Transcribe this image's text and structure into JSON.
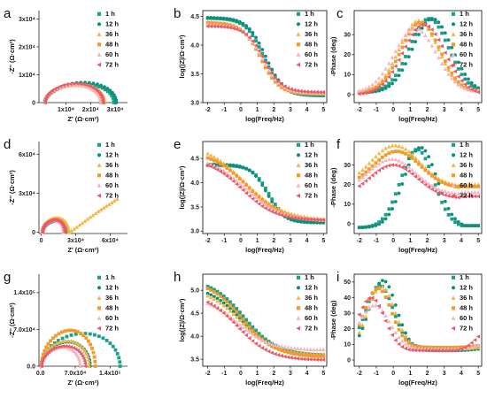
{
  "colors": {
    "1 h": "#1aa18c",
    "12 h": "#0d8f7a",
    "36 h": "#f4b642",
    "48 h": "#f39b2a",
    "60 h": "#f6b6c2",
    "72 h": "#e85a6a"
  },
  "series_names": [
    "1 h",
    "12 h",
    "36 h",
    "48 h",
    "60 h",
    "72 h"
  ],
  "chart_data": [
    {
      "id": "a",
      "type": "scatter",
      "kind": "nyquist",
      "xlabel": "Z' (Ω·cm²)",
      "ylabel": "-Z'' (Ω·cm²)",
      "xlim": [
        -1000,
        35000
      ],
      "ylim": [
        0,
        33000
      ],
      "xticks": [
        "1x10⁴",
        "2x10⁴",
        "3x10⁴"
      ],
      "xtick_values": [
        10000,
        20000,
        30000
      ],
      "yticks": [
        "0",
        "1x10⁴",
        "2x10⁴",
        "3x10⁴"
      ],
      "ytick_values": [
        0,
        10000,
        20000,
        30000
      ],
      "series": [
        {
          "name": "1 h",
          "center": 14800,
          "r0": 1500,
          "r1": 29500,
          "height": 6600
        },
        {
          "name": "12 h",
          "center": 15500,
          "r0": 1500,
          "r1": 30500,
          "height": 7200
        },
        {
          "name": "36 h",
          "center": 12000,
          "r0": 1500,
          "r1": 24500,
          "height": 6200
        },
        {
          "name": "48 h",
          "center": 12500,
          "r0": 1500,
          "r1": 25500,
          "height": 6500
        },
        {
          "name": "60 h",
          "center": 11500,
          "r0": 1500,
          "r1": 24000,
          "height": 6400
        },
        {
          "name": "72 h",
          "center": 12000,
          "r0": 1500,
          "r1": 25000,
          "height": 6800
        }
      ]
    },
    {
      "id": "b",
      "type": "scatter",
      "kind": "bode_mod",
      "xlabel": "log(Freq/Hz)",
      "ylabel": "log(|Z|/Ω·cm²)",
      "xlim": [
        -2.3,
        5.2
      ],
      "ylim": [
        3.0,
        4.6
      ],
      "xticks": [
        "-2",
        "-1",
        "0",
        "1",
        "2",
        "3",
        "4",
        "5"
      ],
      "xtick_values": [
        -2,
        -1,
        0,
        1,
        2,
        3,
        4,
        5
      ],
      "yticks": [
        "3.0",
        "3.5",
        "4.0",
        "4.5"
      ],
      "ytick_values": [
        3.0,
        3.5,
        4.0,
        4.5
      ],
      "series": [
        {
          "name": "1 h",
          "hi": 4.47,
          "lo": 3.12,
          "mid": 1.4,
          "w": 0.55
        },
        {
          "name": "12 h",
          "hi": 4.48,
          "lo": 3.13,
          "mid": 1.5,
          "w": 0.55
        },
        {
          "name": "36 h",
          "hi": 4.4,
          "lo": 3.15,
          "mid": 1.2,
          "w": 0.55
        },
        {
          "name": "48 h",
          "hi": 4.39,
          "lo": 3.16,
          "mid": 1.2,
          "w": 0.55
        },
        {
          "name": "60 h",
          "hi": 4.36,
          "lo": 3.17,
          "mid": 1.3,
          "w": 0.55
        },
        {
          "name": "72 h",
          "hi": 4.33,
          "lo": 3.18,
          "mid": 1.4,
          "w": 0.55
        }
      ]
    },
    {
      "id": "c",
      "type": "scatter",
      "kind": "phase",
      "xlabel": "log(Freq/Hz)",
      "ylabel": "-Phase (deg)",
      "xlim": [
        -2.3,
        5.2
      ],
      "ylim": [
        -4,
        42
      ],
      "xticks": [
        "-2",
        "-1",
        "0",
        "1",
        "2",
        "3",
        "4",
        "5"
      ],
      "xtick_values": [
        -2,
        -1,
        0,
        1,
        2,
        3,
        4,
        5
      ],
      "yticks": [
        "0",
        "10",
        "20",
        "30"
      ],
      "ytick_values": [
        0,
        10,
        20,
        30
      ],
      "series": [
        {
          "name": "1 h",
          "peak": 38,
          "center": 2.1,
          "w": 1.3,
          "base": 1
        },
        {
          "name": "12 h",
          "peak": 38,
          "center": 2.3,
          "w": 1.3,
          "base": 1
        },
        {
          "name": "36 h",
          "peak": 37,
          "center": 1.5,
          "w": 1.3,
          "base": 1
        },
        {
          "name": "48 h",
          "peak": 36,
          "center": 1.6,
          "w": 1.3,
          "base": 1
        },
        {
          "name": "60 h",
          "peak": 33,
          "center": 1.3,
          "w": 1.4,
          "base": 1
        },
        {
          "name": "72 h",
          "peak": 35,
          "center": 1.8,
          "w": 1.4,
          "base": 0
        }
      ]
    },
    {
      "id": "d",
      "type": "scatter",
      "kind": "nyquist",
      "xlabel": "Z' (Ω·cm²)",
      "ylabel": "-Z'' (Ω·cm²)",
      "xlim": [
        -2000,
        75000
      ],
      "ylim": [
        -1000,
        70000
      ],
      "xticks": [
        "0",
        "3x10⁴",
        "6x10⁴"
      ],
      "xtick_values": [
        0,
        30000,
        60000
      ],
      "yticks": [
        "0",
        "3x10⁴",
        "6x10⁴"
      ],
      "ytick_values": [
        0,
        30000,
        60000
      ],
      "series": [
        {
          "name": "1 h",
          "center": 11500,
          "r0": 1200,
          "r1": 22500,
          "height": 8500
        },
        {
          "name": "12 h",
          "center": 12000,
          "r0": 1200,
          "r1": 23500,
          "height": 9000
        },
        {
          "name": "36 h",
          "center": 12500,
          "r0": 1200,
          "r1": 24000,
          "height": 11000,
          "tail": 66000,
          "tailtop": 25500
        },
        {
          "name": "48 h",
          "center": 10500,
          "r0": 1200,
          "r1": 20000,
          "height": 9500
        },
        {
          "name": "60 h",
          "center": 10000,
          "r0": 1200,
          "r1": 19500,
          "height": 9000
        },
        {
          "name": "72 h",
          "center": 10500,
          "r0": 1200,
          "r1": 20500,
          "height": 9500
        }
      ]
    },
    {
      "id": "e",
      "type": "scatter",
      "kind": "bode_mod",
      "xlabel": "log(Freq/Hz)",
      "ylabel": "log(|Z|/Ω·cm²)",
      "xlim": [
        -2.3,
        5.2
      ],
      "ylim": [
        2.95,
        4.85
      ],
      "xticks": [
        "-2",
        "-1",
        "0",
        "1",
        "2",
        "3",
        "4",
        "5"
      ],
      "xtick_values": [
        -2,
        -1,
        0,
        1,
        2,
        3,
        4,
        5
      ],
      "yticks": [
        "3.0",
        "3.5",
        "4.0",
        "4.5"
      ],
      "ytick_values": [
        3.0,
        3.5,
        4.0,
        4.5
      ],
      "series": [
        {
          "name": "1 h",
          "hi": 4.36,
          "lo": 3.18,
          "mid": 1.7,
          "w": 0.5
        },
        {
          "name": "12 h",
          "hi": 4.38,
          "lo": 3.17,
          "mid": 1.6,
          "w": 0.5
        },
        {
          "name": "36 h",
          "hi": 4.82,
          "lo": 3.22,
          "mid": 0.2,
          "w": 1.2
        },
        {
          "name": "48 h",
          "hi": 4.66,
          "lo": 3.2,
          "mid": 0.4,
          "w": 1.1
        },
        {
          "name": "60 h",
          "hi": 4.55,
          "lo": 3.21,
          "mid": 0.3,
          "w": 1.1
        },
        {
          "name": "72 h",
          "hi": 4.5,
          "lo": 3.22,
          "mid": 0.1,
          "w": 1.0
        }
      ]
    },
    {
      "id": "f",
      "type": "scatter",
      "kind": "phase",
      "xlabel": "log(Freq/Hz)",
      "ylabel": "-Phase (deg)",
      "xlim": [
        -2.3,
        5.2
      ],
      "ylim": [
        -5,
        42
      ],
      "xticks": [
        "-2",
        "-1",
        "0",
        "1",
        "2",
        "3",
        "4",
        "5"
      ],
      "xtick_values": [
        -2,
        -1,
        0,
        1,
        2,
        3,
        4,
        5
      ],
      "yticks": [
        "0",
        "10",
        "20",
        "30"
      ],
      "ytick_values": [
        0,
        10,
        20,
        30
      ],
      "series": [
        {
          "name": "1 h",
          "peak": 38,
          "center": 1.4,
          "w": 1.1,
          "base": -2
        },
        {
          "name": "12 h",
          "peak": 39,
          "center": 1.6,
          "w": 1.1,
          "base": -2
        },
        {
          "name": "36 h",
          "peak": 40,
          "center": 0.1,
          "w": 1.6,
          "base": 19
        },
        {
          "name": "48 h",
          "peak": 37,
          "center": 0.2,
          "w": 1.6,
          "base": 18
        },
        {
          "name": "60 h",
          "peak": 33,
          "center": -0.1,
          "w": 1.6,
          "base": 15
        },
        {
          "name": "72 h",
          "peak": 30,
          "center": 0.0,
          "w": 1.6,
          "base": 13
        }
      ]
    },
    {
      "id": "g",
      "type": "scatter",
      "kind": "nyquist",
      "xlabel": "Z' (Ω·cm²)",
      "ylabel": "-Z'' (Ω·cm²)",
      "xlim": [
        -3000,
        175000
      ],
      "ylim": [
        0,
        175000
      ],
      "xticks": [
        "0.0",
        "7.0x10⁴",
        "1.4x10⁵"
      ],
      "xtick_values": [
        0,
        70000,
        140000
      ],
      "yticks": [
        "0.0",
        "7.0x10⁴",
        "1.4x10⁵"
      ],
      "ytick_values": [
        0,
        70000,
        140000
      ],
      "series": [
        {
          "name": "1 h",
          "center": 80000,
          "r0": 2000,
          "r1": 160000,
          "height": 62000
        },
        {
          "name": "12 h",
          "center": 52000,
          "r0": 2000,
          "r1": 100000,
          "height": 46000
        },
        {
          "name": "36 h",
          "center": 50000,
          "r0": 2000,
          "r1": 98000,
          "height": 48000
        },
        {
          "name": "48 h",
          "center": 55000,
          "r0": 2000,
          "r1": 110000,
          "height": 68000
        },
        {
          "name": "60 h",
          "center": 40000,
          "r0": 2000,
          "r1": 80000,
          "height": 36000
        },
        {
          "name": "72 h",
          "center": 45000,
          "r0": 2000,
          "r1": 90000,
          "height": 38000
        }
      ]
    },
    {
      "id": "h",
      "type": "scatter",
      "kind": "bode_mod",
      "xlabel": "log(Freq/Hz)",
      "ylabel": "log(|Z|/Ω·cm²)",
      "xlim": [
        -2.3,
        5.2
      ],
      "ylim": [
        3.35,
        5.35
      ],
      "xticks": [
        "-2",
        "-1",
        "0",
        "1",
        "2",
        "3",
        "4",
        "5"
      ],
      "xtick_values": [
        -2,
        -1,
        0,
        1,
        2,
        3,
        4,
        5
      ],
      "yticks": [
        "3.5",
        "4.0",
        "4.5",
        "5.0"
      ],
      "ytick_values": [
        3.5,
        4.0,
        4.5,
        5.0
      ],
      "series": [
        {
          "name": "1 h",
          "hi": 5.25,
          "lo": 3.58,
          "mid": 0.2,
          "w": 1.0
        },
        {
          "name": "12 h",
          "hi": 5.1,
          "lo": 3.56,
          "mid": 0.1,
          "w": 1.0
        },
        {
          "name": "36 h",
          "hi": 5.05,
          "lo": 3.6,
          "mid": 0.0,
          "w": 1.0
        },
        {
          "name": "48 h",
          "hi": 5.22,
          "lo": 3.55,
          "mid": 0.1,
          "w": 1.0
        },
        {
          "name": "60 h",
          "hi": 4.88,
          "lo": 3.7,
          "mid": -0.2,
          "w": 1.0
        },
        {
          "name": "72 h",
          "hi": 4.95,
          "lo": 3.48,
          "mid": -0.2,
          "w": 1.0
        }
      ]
    },
    {
      "id": "i",
      "type": "scatter",
      "kind": "phase",
      "xlabel": "log(Freq/Hz)",
      "ylabel": "-Phase (deg)",
      "xlim": [
        -2.3,
        5.2
      ],
      "ylim": [
        -4,
        55
      ],
      "xticks": [
        "-2",
        "-1",
        "0",
        "1",
        "2",
        "3",
        "4",
        "5"
      ],
      "xtick_values": [
        -2,
        -1,
        0,
        1,
        2,
        3,
        4,
        5
      ],
      "yticks": [
        "0",
        "10",
        "20",
        "30",
        "40",
        "50"
      ],
      "ytick_values": [
        0,
        10,
        20,
        30,
        40,
        50
      ],
      "series": [
        {
          "name": "1 h",
          "peak": 48,
          "center": -0.8,
          "w": 0.9,
          "base": 8,
          "tail": 10
        },
        {
          "name": "12 h",
          "peak": 51,
          "center": -0.6,
          "w": 0.9,
          "base": 6,
          "tail": 8
        },
        {
          "name": "36 h",
          "peak": 47,
          "center": -0.7,
          "w": 0.9,
          "base": 7,
          "tail": 9
        },
        {
          "name": "48 h",
          "peak": 46,
          "center": -0.9,
          "w": 0.9,
          "base": 8,
          "tail": 10
        },
        {
          "name": "60 h",
          "peak": 35,
          "center": -1.1,
          "w": 1.0,
          "base": 7,
          "tail": 12
        },
        {
          "name": "72 h",
          "peak": 40,
          "center": -1.3,
          "w": 0.9,
          "base": 6,
          "tail": 24
        }
      ]
    }
  ]
}
